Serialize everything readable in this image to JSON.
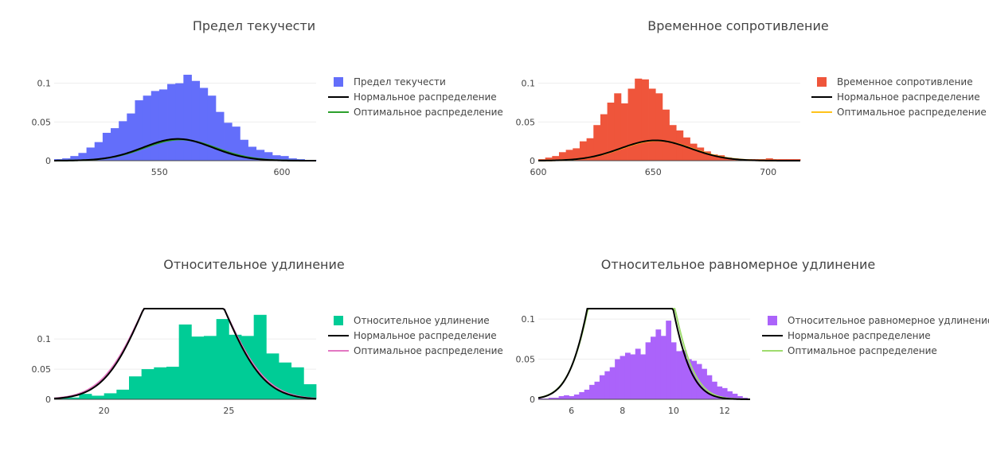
{
  "colors": {
    "normal": "#000000"
  },
  "chart_data": [
    {
      "type": "bar",
      "title": "Предел текучести",
      "xlim": [
        507,
        614
      ],
      "ylim": [
        0,
        0.113
      ],
      "xticks": [
        550,
        600
      ],
      "yticks": [
        0,
        0.05,
        0.1
      ],
      "ytick_labels": [
        "0",
        "0.05",
        "0.1"
      ],
      "hist": {
        "name": "Предел текучести",
        "color": "#636efa",
        "start": 507,
        "width": 3.3,
        "values": [
          0.002,
          0.003,
          0.006,
          0.01,
          0.017,
          0.024,
          0.036,
          0.042,
          0.051,
          0.061,
          0.078,
          0.084,
          0.09,
          0.092,
          0.099,
          0.1,
          0.111,
          0.103,
          0.094,
          0.084,
          0.063,
          0.049,
          0.044,
          0.027,
          0.018,
          0.014,
          0.011,
          0.007,
          0.006,
          0.003,
          0.002,
          0.001,
          0.001
        ]
      },
      "normal": {
        "name": "Нормальное распределение",
        "mean": 557.5,
        "sd": 14.2
      },
      "optimal": {
        "name": "Оптимальное распределение",
        "color": "#2ca02c",
        "mean": 558.5,
        "sd": 14.6
      }
    },
    {
      "type": "bar",
      "title": "Временное сопротивление",
      "xlim": [
        600,
        714
      ],
      "ylim": [
        0,
        0.113
      ],
      "xticks": [
        600,
        650,
        700
      ],
      "yticks": [
        0,
        0.05,
        0.1
      ],
      "ytick_labels": [
        "0",
        "0.05",
        "0.1"
      ],
      "hist": {
        "name": "Временное сопротивление",
        "color": "#ef553b",
        "start": 600,
        "width": 3.0,
        "values": [
          0.002,
          0.004,
          0.006,
          0.011,
          0.014,
          0.016,
          0.025,
          0.029,
          0.046,
          0.06,
          0.075,
          0.087,
          0.074,
          0.093,
          0.106,
          0.105,
          0.093,
          0.087,
          0.066,
          0.046,
          0.039,
          0.03,
          0.022,
          0.017,
          0.012,
          0.008,
          0.007,
          0.004,
          0.003,
          0.002,
          0.002,
          0.002,
          0.002,
          0.003,
          0.002,
          0.002,
          0.002,
          0.002
        ]
      },
      "normal": {
        "name": "Нормальное распределение",
        "mean": 651,
        "sd": 15.2
      },
      "optimal": {
        "name": "Оптимальное распределение",
        "color": "#ffc21a",
        "mean": 651.5,
        "sd": 15.4
      }
    },
    {
      "type": "bar",
      "title": "Относительное удлинение",
      "xlim": [
        18,
        28.5
      ],
      "ylim": [
        0,
        0.145
      ],
      "xticks": [
        20,
        25
      ],
      "yticks": [
        0,
        0.05,
        0.1
      ],
      "ytick_labels": [
        "0",
        "0.05",
        "0.1"
      ],
      "hist": {
        "name": "Относительное удлинение",
        "color": "#00cc96",
        "start": 18,
        "width": 0.5,
        "values": [
          0.003,
          0.003,
          0.009,
          0.006,
          0.01,
          0.016,
          0.038,
          0.05,
          0.053,
          0.054,
          0.124,
          0.104,
          0.105,
          0.133,
          0.107,
          0.105,
          0.14,
          0.076,
          0.061,
          0.053,
          0.025,
          0.036,
          0.018,
          0.005,
          0.002,
          0.002,
          0.002,
          0.002,
          0.002,
          0.002,
          0.002
        ]
      },
      "normal": {
        "name": "Нормальное распределение",
        "mean": 23.2,
        "sd": 1.6
      },
      "optimal": {
        "name": "Оптимальное распределение",
        "color": "#e377c2",
        "mean": 23.2,
        "sd": 1.65
      }
    },
    {
      "type": "bar",
      "title": "Относительное равномерное удлинение",
      "xlim": [
        4.7,
        13
      ],
      "ylim": [
        0,
        0.109
      ],
      "xticks": [
        6,
        8,
        10,
        12
      ],
      "yticks": [
        0,
        0.05,
        0.1
      ],
      "ytick_labels": [
        "0",
        "0.05",
        "0.1"
      ],
      "hist": {
        "name": "Относительное равномерное удлинение",
        "color": "#ab63fa",
        "start": 4.7,
        "width": 0.2,
        "values": [
          0.001,
          0.001,
          0.002,
          0.002,
          0.004,
          0.005,
          0.004,
          0.006,
          0.009,
          0.012,
          0.018,
          0.022,
          0.03,
          0.035,
          0.04,
          0.05,
          0.054,
          0.058,
          0.056,
          0.063,
          0.056,
          0.071,
          0.078,
          0.087,
          0.079,
          0.098,
          0.071,
          0.06,
          0.061,
          0.05,
          0.048,
          0.044,
          0.038,
          0.03,
          0.022,
          0.016,
          0.014,
          0.01,
          0.007,
          0.004,
          0.002
        ]
      },
      "normal": {
        "name": "Нормальное распределение",
        "mean": 8.3,
        "sd": 1.1
      },
      "optimal": {
        "name": "Оптимальное распределение",
        "color": "#9fdc6e",
        "mean": 8.35,
        "sd": 1.13
      }
    }
  ]
}
